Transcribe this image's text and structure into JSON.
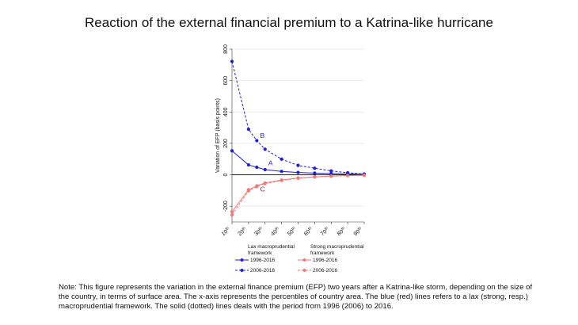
{
  "title": "Reaction of the external financial premium to a Katrina-like hurricane",
  "note": "Note: This figure represents the variation in the external finance premium (EFP) two years after a Katrina-like storm, depending on the size of the country, in terms of surface area. The x-axis represents the percentiles of country area. The blue (red) lines refers to a lax (strong, resp.) macroprudential framework. The solid (dotted) lines deals with the period from 1996 (2006) to 2016.",
  "chart_data": {
    "type": "line",
    "title": "",
    "xlabel": "",
    "ylabel": "Variation of EFP (basis points)",
    "ylim": [
      -300,
      800
    ],
    "yticks": [
      -200,
      0,
      200,
      400,
      600,
      800
    ],
    "yticks_label": [
      "-200",
      "0",
      "200",
      "400",
      "600",
      "800"
    ],
    "categories": [
      "10th",
      "20th",
      "30th",
      "40th",
      "50th",
      "60th",
      "70th",
      "80th",
      "90th"
    ],
    "x_label_num": [
      "10",
      "20",
      "30",
      "40",
      "50",
      "60",
      "70",
      "80",
      "90"
    ],
    "x_label_sup": "th",
    "grid": true,
    "colors": {
      "blue": "#1f1fd6",
      "red": "#f07a7a",
      "zero_line": "#000000",
      "grid": "#e6e6e6"
    },
    "series": [
      {
        "name": "1996-2016",
        "group": "Lax macroprudential framework",
        "color": "#1f1fd6",
        "dash": "solid",
        "x": [
          10,
          20,
          25,
          30,
          40,
          50,
          60,
          70,
          80,
          90
        ],
        "values": [
          153,
          63,
          48,
          33,
          22,
          15,
          11,
          8,
          6,
          4
        ]
      },
      {
        "name": "2006-2016",
        "group": "Lax macroprudential framework",
        "color": "#1f1fd6",
        "dash": "dashed",
        "x": [
          10,
          20,
          25,
          30,
          40,
          50,
          60,
          70,
          80,
          90
        ],
        "values": [
          722,
          290,
          218,
          163,
          100,
          60,
          42,
          25,
          13,
          5
        ]
      },
      {
        "name": "1996-2016",
        "group": "Strong macroprudential framework",
        "color": "#f07a7a",
        "dash": "solid",
        "x": [
          10,
          20,
          25,
          30,
          40,
          50,
          60,
          70,
          80,
          90
        ],
        "values": [
          -235,
          -95,
          -70,
          -52,
          -33,
          -20,
          -13,
          -8,
          -5,
          -3
        ]
      },
      {
        "name": "2006-2016",
        "group": "Strong macroprudential framework",
        "color": "#f07a7a",
        "dash": "dashed",
        "x": [
          10,
          20,
          25,
          30,
          40,
          50,
          60,
          70,
          80,
          90
        ],
        "values": [
          -255,
          -102,
          -75,
          -56,
          -36,
          -22,
          -14,
          -9,
          -5,
          -3
        ]
      }
    ],
    "annotations": [
      {
        "text": "A",
        "x": 32,
        "y": 62,
        "color": "#1f1fd6"
      },
      {
        "text": "B",
        "x": 27,
        "y": 235,
        "color": "#1f1fd6"
      },
      {
        "text": "C",
        "x": 27,
        "y": -105,
        "color": "#6b2a2a"
      }
    ],
    "legend": {
      "placement": "bottom",
      "group_titles": [
        "Lax macroprudential framework",
        "Strong macroprudential framework"
      ],
      "entries": [
        {
          "label": "1996-2016",
          "color": "#1f1fd6",
          "dash": "solid"
        },
        {
          "label": "1996-2016",
          "color": "#f07a7a",
          "dash": "solid"
        },
        {
          "label": "2006-2016",
          "color": "#1f1fd6",
          "dash": "dashed"
        },
        {
          "label": "2006-2016",
          "color": "#f07a7a",
          "dash": "dashed"
        }
      ]
    }
  }
}
